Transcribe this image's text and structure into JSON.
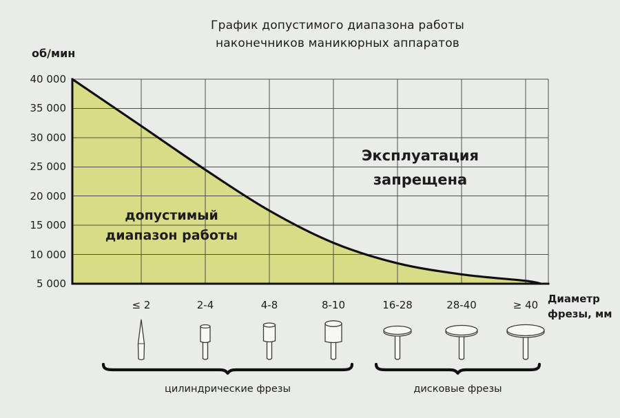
{
  "chart_data": {
    "type": "area",
    "title": "График допустимого диапазона работы наконечников маникюрных аппаратов",
    "title_lines": [
      "График допустимого диапазона работы",
      "наконечников маникюрных аппаратов"
    ],
    "y_unit_label": "об/мин",
    "x_axis_label": "Диаметр фрезы, мм",
    "x_axis_label_lines": [
      "Диаметр",
      "фрезы, мм"
    ],
    "ylim": [
      5000,
      40000
    ],
    "grid": true,
    "y_tick_values": [
      40000,
      35000,
      30000,
      25000,
      20000,
      15000,
      10000,
      5000
    ],
    "y_tick_labels": [
      "40 000",
      "35 000",
      "30 000",
      "25 000",
      "20 000",
      "15 000",
      "10 000",
      "5 000"
    ],
    "categories": [
      "≤ 2",
      "2-4",
      "4-8",
      "8-10",
      "16-28",
      "28-40",
      "≥ 40"
    ],
    "curve": {
      "rpm_at_left_axis": 40000,
      "rpm_at_categories": [
        32000,
        24500,
        17500,
        12000,
        8500,
        6600,
        5500
      ],
      "rpm_at_right_end": 5000
    },
    "regions": {
      "allowed": "допустимый диапазон работы",
      "allowed_lines": [
        "допустимый",
        "диапазон работы"
      ],
      "forbidden": "Эксплуатация запрещена",
      "forbidden_lines": [
        "Эксплуатация",
        "запрещена"
      ]
    },
    "groups": [
      {
        "label": "цилиндрические фрезы",
        "category_indexes": [
          0,
          1,
          2,
          3
        ],
        "icons": [
          "needle-bur",
          "cylinder-bur-small",
          "cylinder-bur-medium",
          "cylinder-bur-large"
        ]
      },
      {
        "label": "дисковые фрезы",
        "category_indexes": [
          4,
          5,
          6
        ],
        "icons": [
          "disc-bur-small",
          "disc-bur-medium",
          "disc-bur-large"
        ]
      }
    ],
    "colors": {
      "allowed_area": "#d8dc87",
      "curve": "#101010",
      "grid": "#4d4d4d",
      "background": "#eaece9",
      "text": "#1c1c1c"
    }
  }
}
